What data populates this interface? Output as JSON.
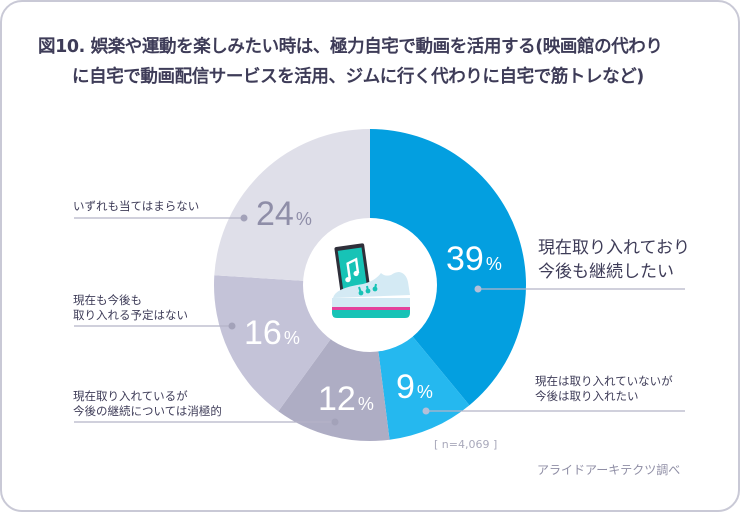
{
  "title": {
    "line1": "図10. 娯楽や運動を楽しみたい時は、極力自宅で動画を活用する(映画館の代わり",
    "line2": "に自宅で動画配信サービスを活用、ジムに行く代わりに自宅で筋トレなど)"
  },
  "chart_data": {
    "type": "pie",
    "variant": "donut",
    "title": "図10. 娯楽や運動を楽しみたい時は、極力自宅で動画を活用する(映画館の代わりに自宅で動画配信サービスを活用、ジムに行く代わりに自宅で筋トレなど)",
    "categories": [
      "現在取り入れており今後も継続したい",
      "現在は取り入れていないが今後は取り入れたい",
      "現在取り入れているが今後の継続については消極的",
      "現在も今後も取り入れる予定はない",
      "いずれも当てはまらない"
    ],
    "values": [
      39,
      9,
      12,
      16,
      24
    ],
    "unit": "%",
    "colors": [
      "#039fe0",
      "#25b8ef",
      "#aeadc4",
      "#c4c3d8",
      "#dfdfe9"
    ],
    "sample_size": "n=4,069",
    "source": "アライドアーキテクツ調べ",
    "legend": "none (leader-line labels)"
  },
  "slices": [
    {
      "pct": "39",
      "sym": "%",
      "label_lines": [
        "現在取り入れており",
        "今後も継続したい"
      ]
    },
    {
      "pct": "9",
      "sym": "%",
      "label_lines": [
        "現在は取り入れていないが",
        "今後は取り入れたい"
      ]
    },
    {
      "pct": "12",
      "sym": "%",
      "label_lines": [
        "現在取り入れているが",
        "今後の継続については消極的"
      ]
    },
    {
      "pct": "16",
      "sym": "%",
      "label_lines": [
        "現在も今後も",
        "取り入れる予定はない"
      ]
    },
    {
      "pct": "24",
      "sym": "%",
      "label_lines": [
        "いずれも当てはまらない"
      ]
    }
  ],
  "center_icon": "smartphone-music-sneaker-icon",
  "note": "[ n=4,069 ]",
  "source": "アライドアーキテクツ調べ"
}
